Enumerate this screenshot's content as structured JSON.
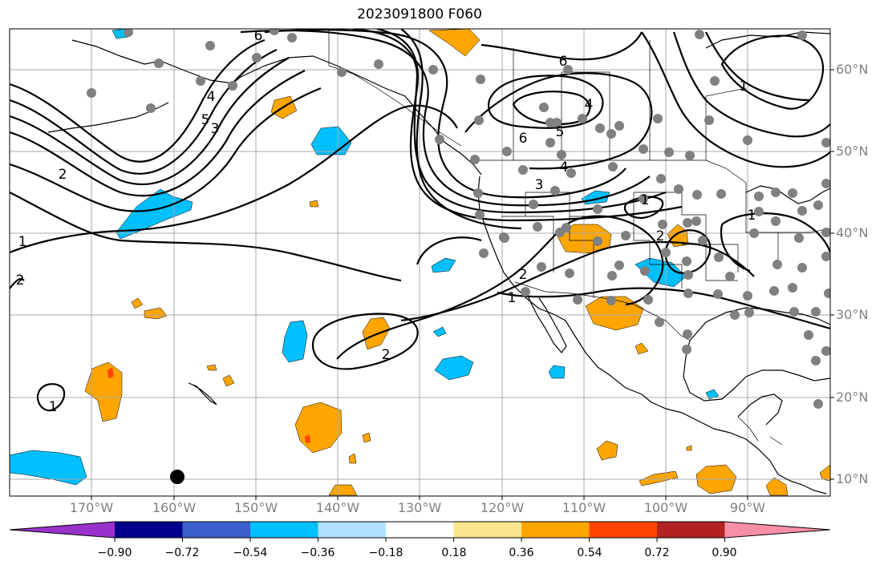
{
  "title": "2023091800 F060",
  "lat_labels": [
    "60°N",
    "50°N",
    "40°N",
    "30°N",
    "20°N",
    "10°N"
  ],
  "lon_labels": [
    "170°W",
    "160°W",
    "150°W",
    "140°W",
    "130°W",
    "120°W",
    "110°W",
    "100°W",
    "90°W"
  ],
  "colorbar": {
    "colors": [
      "#9932cc",
      "#00008b",
      "#3a5fcd",
      "#00bfff",
      "#b0e2ff",
      "#ffffff",
      "#fae68c",
      "#ffa500",
      "#ff4500",
      "#b22222",
      "#f88fa8"
    ],
    "tick_labels": [
      "−0.90",
      "−0.72",
      "−0.54",
      "−0.36",
      "−0.18",
      "0.18",
      "0.36",
      "0.54",
      "0.72",
      "0.90"
    ]
  },
  "contour_labels": [
    "6",
    "4",
    "5",
    "6",
    "4",
    "3",
    "2",
    "1",
    "2",
    "1",
    "1",
    "2",
    "1",
    "2",
    "1",
    "5",
    "4",
    "6",
    "3",
    "2",
    "1"
  ],
  "colors": {
    "positive_fill": "#ffa500",
    "strong_positive": "#ff4500",
    "negative_fill": "#00bfff",
    "station": "#808080",
    "gridline": "#a9a9a9"
  }
}
